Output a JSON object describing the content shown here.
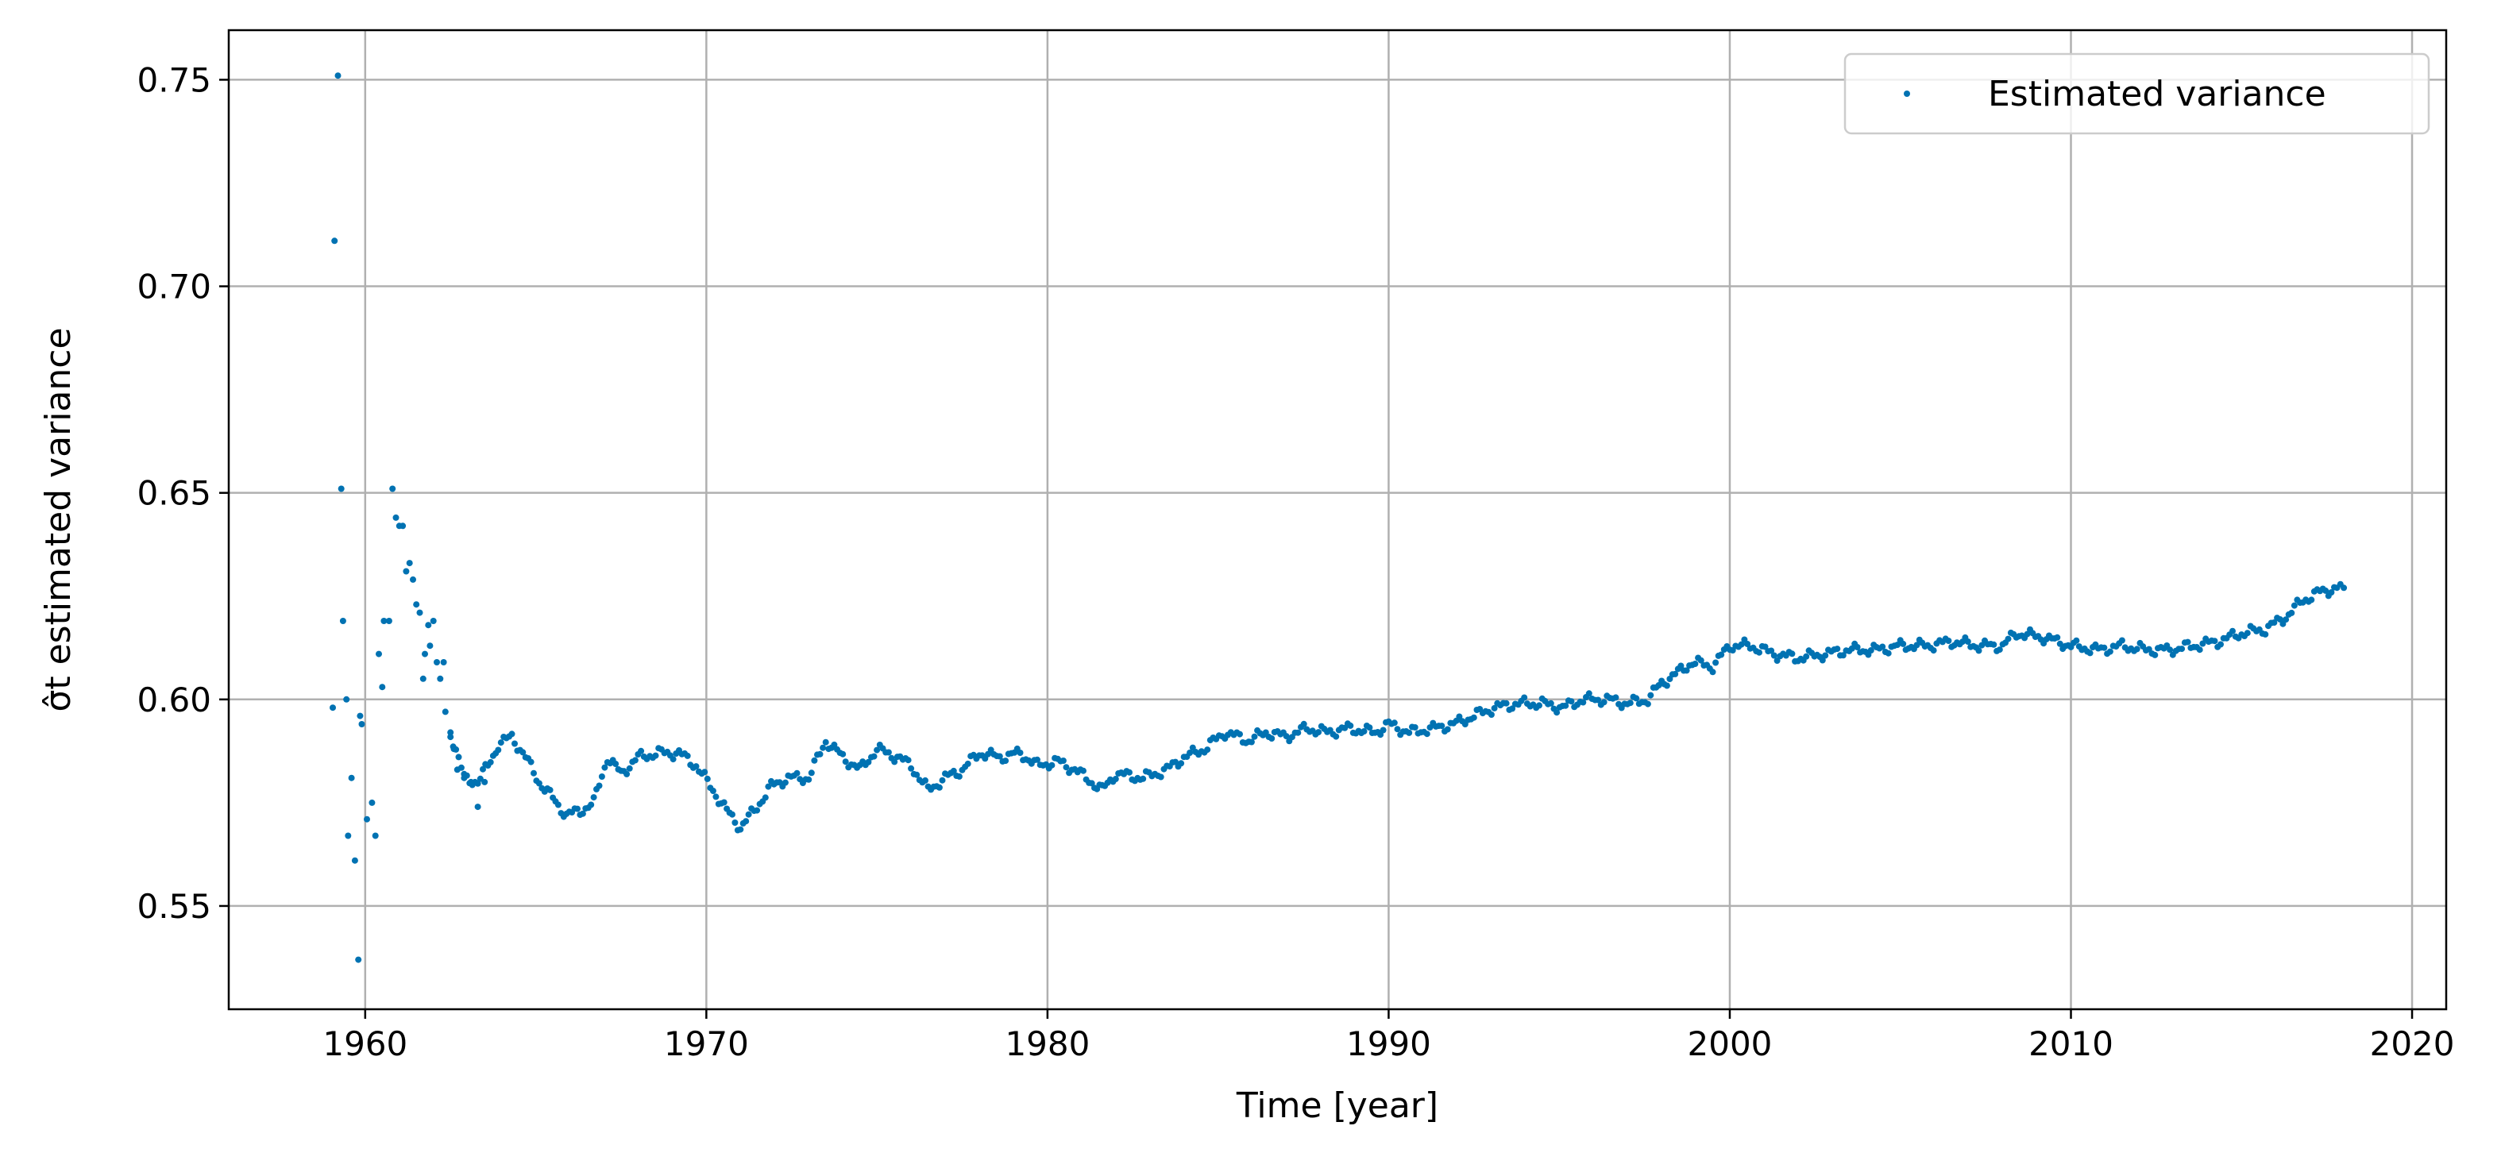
{
  "chart_data": {
    "type": "scatter",
    "title": "",
    "xlabel": "Time [year]",
    "ylabel": "σ̂t estimated variance",
    "xlim": [
      1956,
      2021
    ],
    "ylim": [
      0.525,
      0.762
    ],
    "x_ticks": [
      1960,
      1970,
      1980,
      1990,
      2000,
      2010,
      2020
    ],
    "x_tick_labels": [
      "1960",
      "1970",
      "1980",
      "1990",
      "2000",
      "2010",
      "2020"
    ],
    "y_ticks": [
      0.55,
      0.6,
      0.65,
      0.7,
      0.75
    ],
    "y_tick_labels": [
      "0.55",
      "0.60",
      "0.65",
      "0.70",
      "0.75"
    ],
    "grid": true,
    "legend_position": "top-right",
    "marker_color": "#0072b2",
    "series": [
      {
        "name": "Estimated variance",
        "anchors": [
          [
            1962.5,
            0.592
          ],
          [
            1962.9,
            0.581
          ],
          [
            1963.3,
            0.58
          ],
          [
            1963.6,
            0.584
          ],
          [
            1963.9,
            0.589
          ],
          [
            1964.3,
            0.591
          ],
          [
            1964.7,
            0.586
          ],
          [
            1965.1,
            0.58
          ],
          [
            1965.5,
            0.576
          ],
          [
            1965.9,
            0.572
          ],
          [
            1966.3,
            0.573
          ],
          [
            1966.7,
            0.575
          ],
          [
            1967.1,
            0.586
          ],
          [
            1967.5,
            0.582
          ],
          [
            1968.0,
            0.586
          ],
          [
            1968.6,
            0.587
          ],
          [
            1969.2,
            0.587
          ],
          [
            1969.7,
            0.584
          ],
          [
            1970.2,
            0.578
          ],
          [
            1970.6,
            0.573
          ],
          [
            1971.0,
            0.569
          ],
          [
            1971.4,
            0.573
          ],
          [
            1971.9,
            0.579
          ],
          [
            1972.4,
            0.581
          ],
          [
            1973.0,
            0.581
          ],
          [
            1973.5,
            0.59
          ],
          [
            1974.0,
            0.586
          ],
          [
            1974.5,
            0.583
          ],
          [
            1975.0,
            0.588
          ],
          [
            1975.6,
            0.586
          ],
          [
            1976.0,
            0.584
          ],
          [
            1976.5,
            0.578
          ],
          [
            1977.0,
            0.581
          ],
          [
            1977.5,
            0.583
          ],
          [
            1978.0,
            0.587
          ],
          [
            1978.6,
            0.586
          ],
          [
            1979.2,
            0.587
          ],
          [
            1979.7,
            0.584
          ],
          [
            1980.3,
            0.585
          ],
          [
            1980.8,
            0.583
          ],
          [
            1981.3,
            0.58
          ],
          [
            1981.6,
            0.578
          ],
          [
            1982.0,
            0.582
          ],
          [
            1982.8,
            0.581
          ],
          [
            1983.5,
            0.583
          ],
          [
            1984.0,
            0.586
          ],
          [
            1984.6,
            0.588
          ],
          [
            1985.2,
            0.592
          ],
          [
            1985.9,
            0.59
          ],
          [
            1986.4,
            0.592
          ],
          [
            1987.0,
            0.591
          ],
          [
            1987.6,
            0.593
          ],
          [
            1988.2,
            0.592
          ],
          [
            1988.8,
            0.593
          ],
          [
            1989.6,
            0.592
          ],
          [
            1990.0,
            0.594
          ],
          [
            1990.6,
            0.592
          ],
          [
            1991.3,
            0.593
          ],
          [
            1991.9,
            0.594
          ],
          [
            1992.5,
            0.596
          ],
          [
            1993.1,
            0.598
          ],
          [
            1993.8,
            0.599
          ],
          [
            1994.5,
            0.599
          ],
          [
            1995.1,
            0.598
          ],
          [
            1995.7,
            0.6
          ],
          [
            1996.4,
            0.6
          ],
          [
            1997.0,
            0.599
          ],
          [
            1997.6,
            0.6
          ],
          [
            1998.0,
            0.604
          ],
          [
            1998.4,
            0.606
          ],
          [
            1998.9,
            0.609
          ],
          [
            1999.5,
            0.608
          ],
          [
            2000.0,
            0.613
          ],
          [
            2000.6,
            0.613
          ],
          [
            2001.3,
            0.611
          ],
          [
            2002.0,
            0.61
          ],
          [
            2002.8,
            0.611
          ],
          [
            2003.5,
            0.612
          ],
          [
            2004.3,
            0.612
          ],
          [
            2005.0,
            0.613
          ],
          [
            2005.8,
            0.613
          ],
          [
            2006.5,
            0.614
          ],
          [
            2007.3,
            0.613
          ],
          [
            2008.0,
            0.613
          ],
          [
            2008.4,
            0.616
          ],
          [
            2009.2,
            0.615
          ],
          [
            2010.0,
            0.613
          ],
          [
            2010.8,
            0.612
          ],
          [
            2011.5,
            0.613
          ],
          [
            2012.2,
            0.612
          ],
          [
            2012.9,
            0.612
          ],
          [
            2013.6,
            0.613
          ],
          [
            2014.3,
            0.614
          ],
          [
            2015.0,
            0.616
          ],
          [
            2015.7,
            0.617
          ],
          [
            2016.3,
            0.62
          ],
          [
            2016.8,
            0.624
          ],
          [
            2017.3,
            0.626
          ],
          [
            2017.8,
            0.627
          ],
          [
            2018.0,
            0.627
          ]
        ],
        "early_points": [
          [
            1959.05,
            0.598
          ],
          [
            1959.1,
            0.711
          ],
          [
            1959.2,
            0.751
          ],
          [
            1959.3,
            0.651
          ],
          [
            1959.35,
            0.619
          ],
          [
            1959.45,
            0.6
          ],
          [
            1959.5,
            0.567
          ],
          [
            1959.6,
            0.581
          ],
          [
            1959.7,
            0.561
          ],
          [
            1959.8,
            0.537
          ],
          [
            1959.85,
            0.596
          ],
          [
            1959.9,
            0.594
          ],
          [
            1960.05,
            0.571
          ],
          [
            1960.2,
            0.575
          ],
          [
            1960.3,
            0.567
          ],
          [
            1960.4,
            0.611
          ],
          [
            1960.5,
            0.603
          ],
          [
            1960.55,
            0.619
          ],
          [
            1960.7,
            0.619
          ],
          [
            1960.8,
            0.651
          ],
          [
            1960.9,
            0.644
          ],
          [
            1961.0,
            0.642
          ],
          [
            1961.1,
            0.642
          ],
          [
            1961.2,
            0.631
          ],
          [
            1961.3,
            0.633
          ],
          [
            1961.4,
            0.629
          ],
          [
            1961.5,
            0.623
          ],
          [
            1961.6,
            0.621
          ],
          [
            1961.7,
            0.605
          ],
          [
            1961.75,
            0.611
          ],
          [
            1961.85,
            0.618
          ],
          [
            1961.9,
            0.613
          ],
          [
            1962.0,
            0.619
          ],
          [
            1962.1,
            0.609
          ],
          [
            1962.2,
            0.605
          ],
          [
            1962.3,
            0.609
          ],
          [
            1962.35,
            0.597
          ],
          [
            1962.5,
            0.592
          ],
          [
            1962.6,
            0.588
          ],
          [
            1962.7,
            0.583
          ],
          [
            1962.9,
            0.581
          ],
          [
            1963.1,
            0.58
          ],
          [
            1963.3,
            0.574
          ],
          [
            1963.5,
            0.58
          ]
        ]
      }
    ]
  }
}
